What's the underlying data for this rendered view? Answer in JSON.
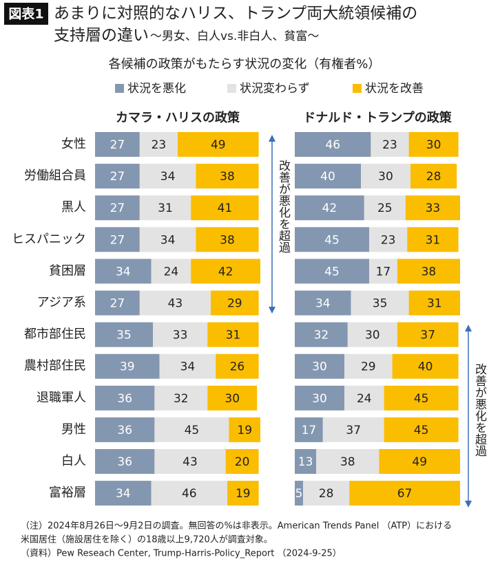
{
  "header": {
    "badge": "図表1",
    "title_line1": "あまりに対照的なハリス、トランプ両大統領候補の",
    "title_line2": "支持層の違い",
    "title_line2_sub": "〜男女、白人vs.非白人、貧富〜"
  },
  "chart_data": {
    "type": "bar",
    "orientation": "horizontal",
    "stacked": true,
    "subtitle": "各候補の政策がもたらす状況の変化（有権者%）",
    "categories": [
      "女性",
      "労働組合員",
      "黒人",
      "ヒスパニック",
      "貧困層",
      "アジア系",
      "都市部住民",
      "農村部住民",
      "退職軍人",
      "男性",
      "白人",
      "富裕層"
    ],
    "xlim": [
      0,
      100
    ],
    "legend": [
      {
        "name": "状況を悪化",
        "color": "#8497b0"
      },
      {
        "name": "状況変わらず",
        "color": "#e3e3e3"
      },
      {
        "name": "状況を改善",
        "color": "#fbbd00"
      }
    ],
    "label_colors": [
      "#ffffff",
      "#222222",
      "#222222"
    ],
    "panels": [
      {
        "title": "カマラ・ハリスの政策",
        "values": [
          [
            27,
            27,
            27,
            27,
            34,
            27,
            35,
            39,
            36,
            36,
            36,
            34
          ],
          [
            23,
            34,
            31,
            34,
            24,
            43,
            33,
            34,
            32,
            45,
            43,
            46
          ],
          [
            49,
            38,
            41,
            38,
            42,
            29,
            31,
            26,
            30,
            19,
            20,
            19
          ]
        ]
      },
      {
        "title": "ドナルド・トランプの政策",
        "values": [
          [
            46,
            40,
            42,
            45,
            45,
            34,
            32,
            30,
            30,
            17,
            13,
            5
          ],
          [
            23,
            30,
            25,
            23,
            17,
            35,
            30,
            29,
            24,
            37,
            38,
            28
          ],
          [
            30,
            28,
            33,
            31,
            38,
            31,
            37,
            40,
            45,
            45,
            49,
            67
          ]
        ]
      }
    ],
    "annotations": [
      "改善が悪化を超過",
      "改善が悪化を超過"
    ]
  },
  "notes": [
    "（注）2024年8月26日〜9月2日の調査。無回答の%は非表示。American Trends Panel （ATP）における",
    "米国居住（施設居住を除く）の18歳以上9,720人が調査対象。",
    "（資料）Pew Reseach Center, Trump-Harris-Policy_Report （2024-9-25）"
  ]
}
